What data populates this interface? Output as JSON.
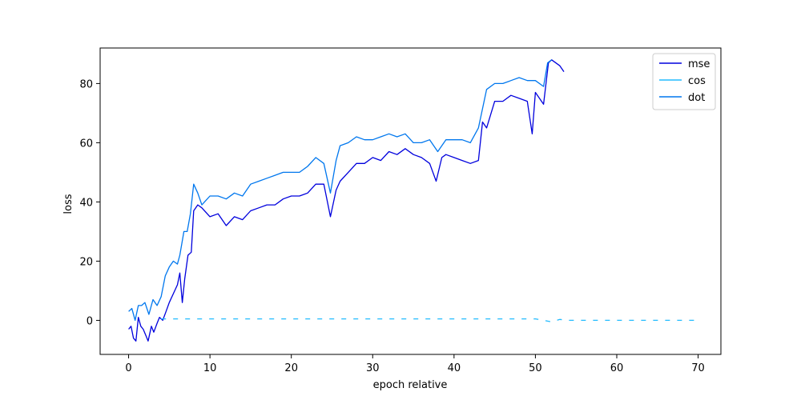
{
  "chart_data": {
    "type": "line",
    "title": "",
    "xlabel": "epoch relative",
    "ylabel": "loss",
    "xlim": [
      -3.5,
      72.8
    ],
    "ylim": [
      -11.5,
      92
    ],
    "xticks": [
      0,
      10,
      20,
      30,
      40,
      50,
      60,
      70
    ],
    "yticks": [
      0,
      20,
      40,
      60,
      80
    ],
    "grid": false,
    "legend_position": "top-right",
    "series": [
      {
        "name": "mse",
        "color": "#0000dd",
        "style": "solid",
        "points": [
          [
            0,
            -3
          ],
          [
            0.3,
            -2
          ],
          [
            0.6,
            -6
          ],
          [
            0.9,
            -7
          ],
          [
            1.2,
            1
          ],
          [
            1.5,
            -2
          ],
          [
            1.8,
            -3
          ],
          [
            2.1,
            -5
          ],
          [
            2.4,
            -7
          ],
          [
            2.8,
            -2
          ],
          [
            3.1,
            -4
          ],
          [
            3.5,
            -1
          ],
          [
            3.8,
            1
          ],
          [
            4.2,
            0
          ],
          [
            4.6,
            3
          ],
          [
            5.0,
            6
          ],
          [
            5.5,
            9
          ],
          [
            6.0,
            12
          ],
          [
            6.3,
            16
          ],
          [
            6.6,
            6
          ],
          [
            6.9,
            14
          ],
          [
            7.3,
            22
          ],
          [
            7.7,
            23
          ],
          [
            8.0,
            37
          ],
          [
            8.5,
            39
          ],
          [
            9.0,
            38
          ],
          [
            10,
            35
          ],
          [
            11,
            36
          ],
          [
            12,
            32
          ],
          [
            13,
            35
          ],
          [
            14,
            34
          ],
          [
            15,
            37
          ],
          [
            16,
            38
          ],
          [
            17,
            39
          ],
          [
            18,
            39
          ],
          [
            19,
            41
          ],
          [
            20,
            42
          ],
          [
            21,
            42
          ],
          [
            22,
            43
          ],
          [
            23,
            46
          ],
          [
            24,
            46
          ],
          [
            24.8,
            35
          ],
          [
            25.5,
            44
          ],
          [
            26,
            47
          ],
          [
            27,
            50
          ],
          [
            28,
            53
          ],
          [
            29,
            53
          ],
          [
            30,
            55
          ],
          [
            31,
            54
          ],
          [
            32,
            57
          ],
          [
            33,
            56
          ],
          [
            34,
            58
          ],
          [
            35,
            56
          ],
          [
            36,
            55
          ],
          [
            37,
            53
          ],
          [
            37.8,
            47
          ],
          [
            38.5,
            55
          ],
          [
            39,
            56
          ],
          [
            40,
            55
          ],
          [
            41,
            54
          ],
          [
            42,
            53
          ],
          [
            43,
            54
          ],
          [
            43.5,
            67
          ],
          [
            44,
            65
          ],
          [
            45,
            74
          ],
          [
            46,
            74
          ],
          [
            47,
            76
          ],
          [
            48,
            75
          ],
          [
            49,
            74
          ],
          [
            49.6,
            63
          ],
          [
            50,
            77
          ],
          [
            51,
            73
          ],
          [
            51.6,
            87
          ],
          [
            52,
            88
          ],
          [
            53,
            86
          ],
          [
            53.5,
            84
          ]
        ]
      },
      {
        "name": "cos",
        "color": "#22bbff",
        "style": "dashed",
        "points": [
          [
            4,
            0.5
          ],
          [
            10,
            0.5
          ],
          [
            20,
            0.5
          ],
          [
            30,
            0.5
          ],
          [
            40,
            0.5
          ],
          [
            50,
            0.5
          ],
          [
            52,
            -0.5
          ],
          [
            53,
            0.3
          ],
          [
            54,
            0
          ],
          [
            60,
            0
          ],
          [
            69.5,
            0
          ]
        ]
      },
      {
        "name": "dot",
        "color": "#0077ee",
        "style": "solid",
        "points": [
          [
            0,
            3
          ],
          [
            0.4,
            4
          ],
          [
            0.8,
            0
          ],
          [
            1.2,
            5
          ],
          [
            1.6,
            5
          ],
          [
            2.0,
            6
          ],
          [
            2.5,
            2
          ],
          [
            3.0,
            7
          ],
          [
            3.5,
            5
          ],
          [
            4.0,
            8
          ],
          [
            4.5,
            15
          ],
          [
            5.0,
            18
          ],
          [
            5.5,
            20
          ],
          [
            6.0,
            19
          ],
          [
            6.3,
            22
          ],
          [
            6.8,
            30
          ],
          [
            7.2,
            30
          ],
          [
            7.6,
            36
          ],
          [
            8.0,
            46
          ],
          [
            8.5,
            43
          ],
          [
            9.0,
            39
          ],
          [
            10,
            42
          ],
          [
            11,
            42
          ],
          [
            12,
            41
          ],
          [
            13,
            43
          ],
          [
            14,
            42
          ],
          [
            15,
            46
          ],
          [
            16,
            47
          ],
          [
            17,
            48
          ],
          [
            18,
            49
          ],
          [
            19,
            50
          ],
          [
            20,
            50
          ],
          [
            21,
            50
          ],
          [
            22,
            52
          ],
          [
            23,
            55
          ],
          [
            24,
            53
          ],
          [
            24.8,
            43
          ],
          [
            25.5,
            54
          ],
          [
            26,
            59
          ],
          [
            27,
            60
          ],
          [
            28,
            62
          ],
          [
            29,
            61
          ],
          [
            30,
            61
          ],
          [
            31,
            62
          ],
          [
            32,
            63
          ],
          [
            33,
            62
          ],
          [
            34,
            63
          ],
          [
            35,
            60
          ],
          [
            36,
            60
          ],
          [
            37,
            61
          ],
          [
            38,
            57
          ],
          [
            39,
            61
          ],
          [
            40,
            61
          ],
          [
            41,
            61
          ],
          [
            42,
            60
          ],
          [
            43,
            65
          ],
          [
            44,
            78
          ],
          [
            45,
            80
          ],
          [
            46,
            80
          ],
          [
            47,
            81
          ],
          [
            48,
            82
          ],
          [
            49,
            81
          ],
          [
            50,
            81
          ],
          [
            51,
            79
          ],
          [
            51.5,
            87
          ],
          [
            52,
            88
          ]
        ]
      }
    ]
  }
}
